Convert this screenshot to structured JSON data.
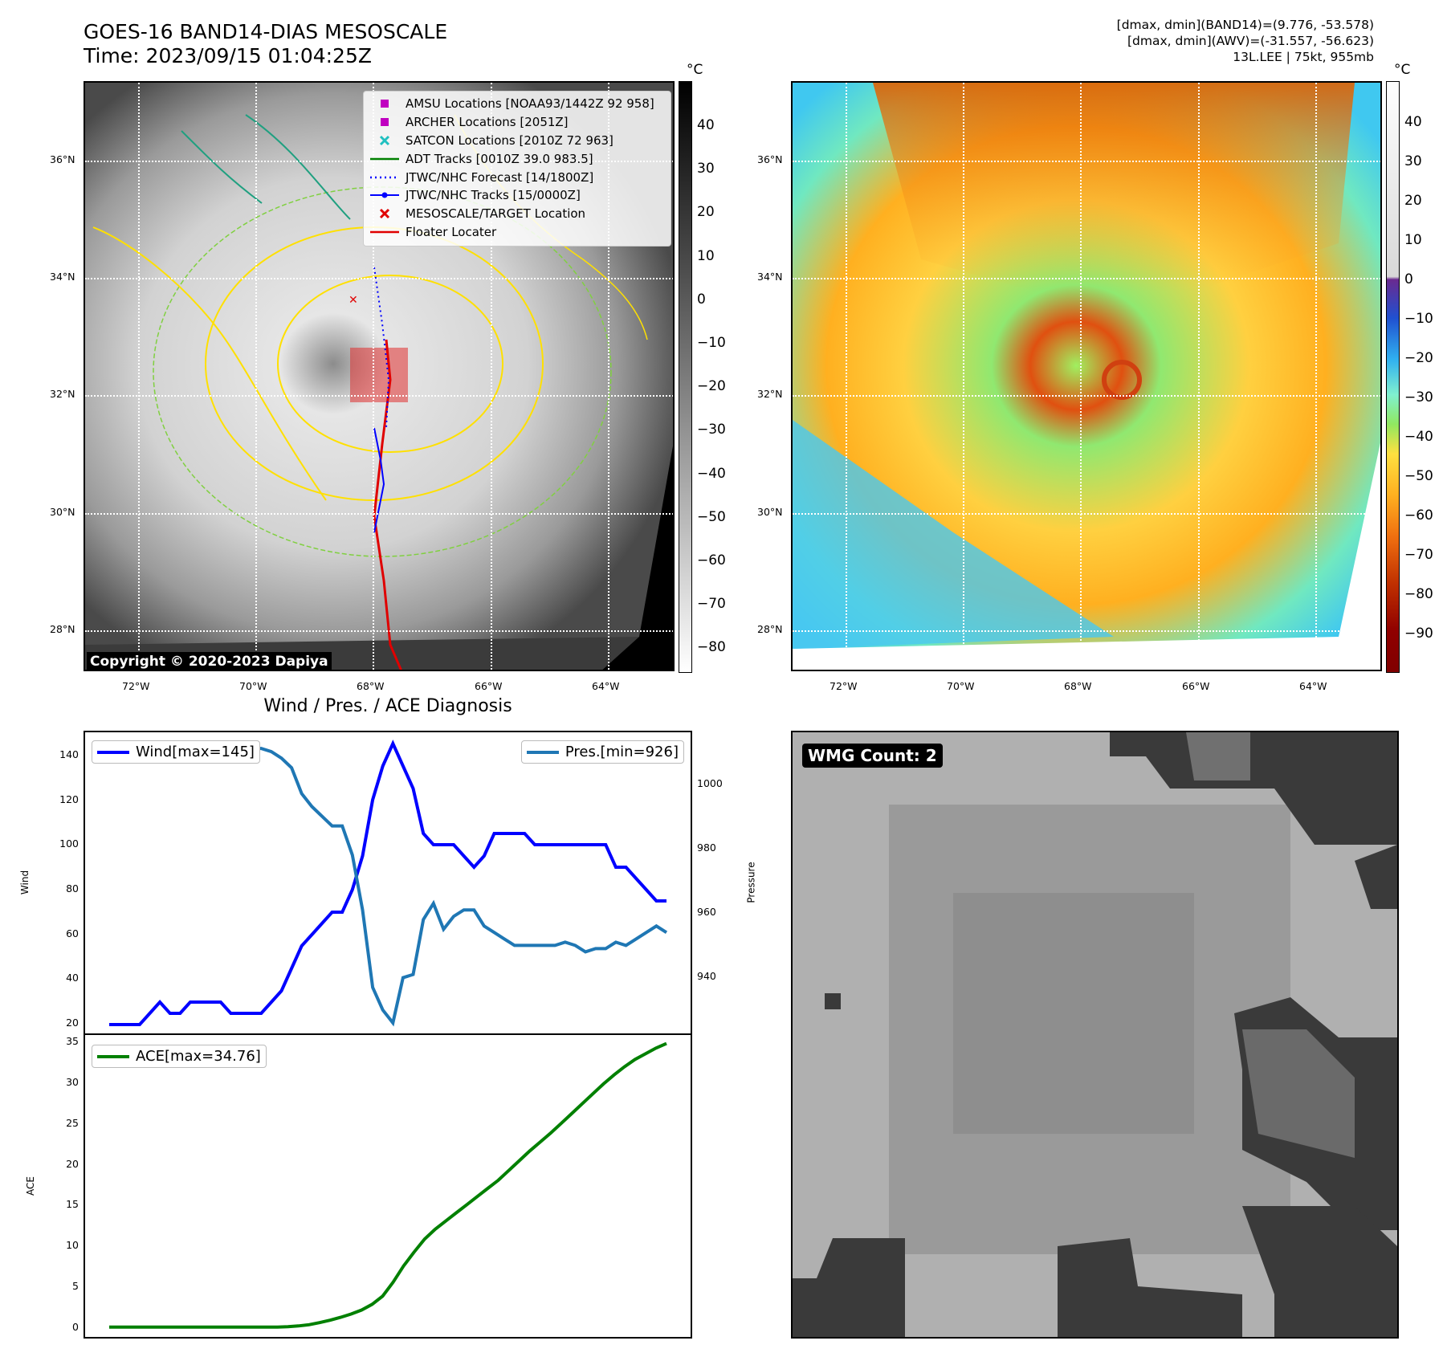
{
  "header": {
    "title_line1": "GOES-16 BAND14-DIAS MESOSCALE",
    "title_line2": "Time: 2023/09/15 01:04:25Z",
    "info_line1": "[dmax, dmin](BAND14)=(9.776, -53.578)",
    "info_line2": "[dmax, dmin](AWV)=(-31.557, -56.623)",
    "info_line3": "13L.LEE | 75kt, 955mb"
  },
  "map": {
    "lat_labels": [
      "36°N",
      "34°N",
      "32°N",
      "30°N",
      "28°N"
    ],
    "lon_labels": [
      "72°W",
      "70°W",
      "68°W",
      "66°W",
      "64°W"
    ],
    "copyright": "Copyright © 2020-2023 Dapiya",
    "legend": [
      {
        "label": "AMSU Locations [NOAA93/1442Z 92 958]",
        "symbol": "square",
        "color": "#c000c0"
      },
      {
        "label": "ARCHER Locations [2051Z]",
        "symbol": "square",
        "color": "#c000c0"
      },
      {
        "label": "SATCON Locations [2010Z 72 963]",
        "symbol": "x",
        "color": "#20c0c0"
      },
      {
        "label": "ADT Tracks [0010Z 39.0 983.5]",
        "symbol": "line",
        "color": "#008000"
      },
      {
        "label": "JTWC/NHC Forecast [14/1800Z]",
        "symbol": "dotted",
        "color": "#0000ff"
      },
      {
        "label": "JTWC/NHC Tracks [15/0000Z]",
        "symbol": "line-dot",
        "color": "#0000ff"
      },
      {
        "label": "MESOSCALE/TARGET Location",
        "symbol": "x",
        "color": "#e00000"
      },
      {
        "label": "Floater Locater",
        "symbol": "line",
        "color": "#e00000"
      }
    ]
  },
  "colorbars": {
    "unit": "°C",
    "gray_ticks": [
      "40",
      "30",
      "20",
      "10",
      "0",
      "−10",
      "−20",
      "−30",
      "−40",
      "−50",
      "−60",
      "−70",
      "−80"
    ],
    "color_ticks": [
      "40",
      "30",
      "20",
      "10",
      "0",
      "−10",
      "−20",
      "−30",
      "−40",
      "−50",
      "−60",
      "−70",
      "−80",
      "−90"
    ]
  },
  "wmg": {
    "label": "WMG Count: 2"
  },
  "chart_data": [
    {
      "type": "line",
      "title": "Wind / Pres. / ACE Diagnosis",
      "ylabel": "Wind",
      "y2label": "Pressure",
      "ylim": [
        15,
        150
      ],
      "y2lim": [
        922,
        1016
      ],
      "yticks": [
        "140",
        "120",
        "100",
        "80",
        "60",
        "40",
        "20"
      ],
      "y2ticks": [
        "1000",
        "980",
        "960",
        "940"
      ],
      "series": [
        {
          "name": "Wind[max=145]",
          "color": "#0000ff",
          "values": [
            20,
            20,
            20,
            20,
            25,
            30,
            25,
            25,
            30,
            30,
            30,
            30,
            25,
            25,
            25,
            25,
            30,
            35,
            45,
            55,
            60,
            65,
            70,
            70,
            80,
            95,
            120,
            135,
            145,
            135,
            125,
            105,
            100,
            100,
            100,
            95,
            90,
            95,
            105,
            105,
            105,
            105,
            100,
            100,
            100,
            100,
            100,
            100,
            100,
            100,
            90,
            90,
            85,
            80,
            75,
            75
          ]
        },
        {
          "name": "Pres.[min=926]",
          "color": "#1f77b4",
          "values": [
            1012,
            1012,
            1012,
            1012,
            1011,
            1011,
            1011,
            1011,
            1011,
            1011,
            1011,
            1011,
            1011,
            1011,
            1011,
            1011,
            1010,
            1008,
            1005,
            997,
            993,
            990,
            987,
            987,
            978,
            961,
            937,
            930,
            926,
            940,
            941,
            958,
            963,
            955,
            959,
            961,
            961,
            956,
            954,
            952,
            950,
            950,
            950,
            950,
            950,
            951,
            950,
            948,
            949,
            949,
            951,
            950,
            952,
            954,
            956,
            954
          ]
        }
      ]
    },
    {
      "type": "line",
      "ylabel": "ACE",
      "ylim": [
        -1.2,
        35.8
      ],
      "yticks": [
        "35",
        "30",
        "25",
        "20",
        "15",
        "10",
        "5",
        "0"
      ],
      "series": [
        {
          "name": "ACE[max=34.76]",
          "color": "#008000",
          "values": [
            0,
            0,
            0,
            0,
            0,
            0,
            0,
            0,
            0,
            0,
            0,
            0,
            0,
            0,
            0,
            0,
            0,
            0.05,
            0.15,
            0.3,
            0.55,
            0.85,
            1.2,
            1.6,
            2.1,
            2.8,
            3.8,
            5.5,
            7.5,
            9.2,
            10.8,
            12,
            13,
            14,
            15,
            16,
            17,
            18,
            19.2,
            20.4,
            21.6,
            22.7,
            23.8,
            25,
            26.2,
            27.4,
            28.6,
            29.8,
            30.9,
            31.9,
            32.8,
            33.5,
            34.2,
            34.76
          ]
        }
      ]
    }
  ]
}
